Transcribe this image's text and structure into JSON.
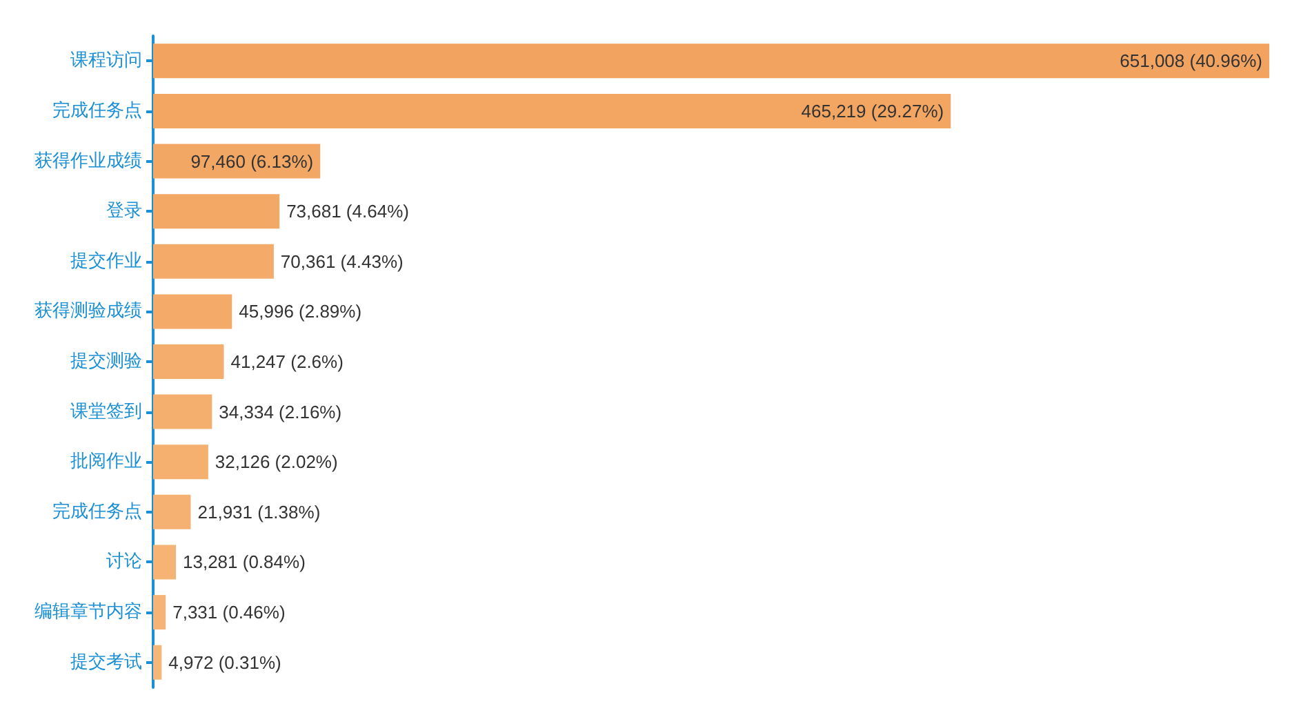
{
  "chart_data": {
    "type": "bar",
    "orientation": "horizontal",
    "categories": [
      "课程访问",
      "完成任务点",
      "获得作业成绩",
      "登录",
      "提交作业",
      "获得测验成绩",
      "提交测验",
      "课堂签到",
      "批阅作业",
      "完成任务点",
      "讨论",
      "编辑章节内容",
      "提交考试"
    ],
    "values": [
      651008,
      465219,
      97460,
      73681,
      70361,
      45996,
      41247,
      34334,
      32126,
      21931,
      13281,
      7331,
      4972
    ],
    "value_labels": [
      "651,008 (40.96%)",
      "465,219 (29.27%)",
      "97,460 (6.13%)",
      "73,681 (4.64%)",
      "70,361 (4.43%)",
      "45,996 (2.89%)",
      "41,247 (2.6%)",
      "34,334 (2.16%)",
      "32,126 (2.02%)",
      "21,931 (1.38%)",
      "13,281 (0.84%)",
      "7,331 (0.46%)",
      "4,972 (0.31%)"
    ],
    "colors": [
      "#f2a360",
      "#f3a562",
      "#f3a764",
      "#f3a866",
      "#f4aa68",
      "#f4ab6a",
      "#f4ad6c",
      "#f4ae6e",
      "#f5b070",
      "#f5b172",
      "#f5b374",
      "#f5b476",
      "#f6b678"
    ]
  }
}
